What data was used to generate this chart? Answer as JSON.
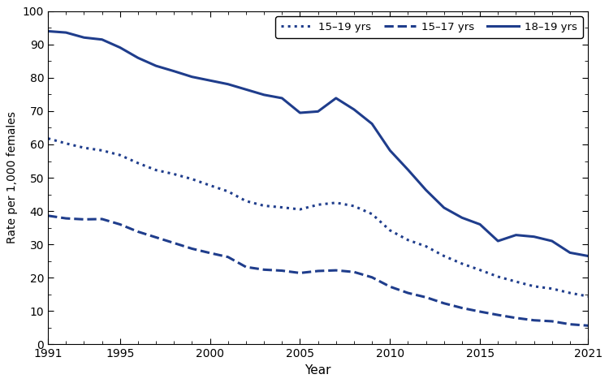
{
  "years": [
    1991,
    1992,
    1993,
    1994,
    1995,
    1996,
    1997,
    1998,
    1999,
    2000,
    2001,
    2002,
    2003,
    2004,
    2005,
    2006,
    2007,
    2008,
    2009,
    2010,
    2011,
    2012,
    2013,
    2014,
    2015,
    2016,
    2017,
    2018,
    2019,
    2020,
    2021
  ],
  "rate_15_19": [
    61.8,
    60.3,
    59.0,
    58.2,
    56.8,
    54.4,
    52.3,
    51.1,
    49.6,
    47.7,
    45.9,
    43.0,
    41.6,
    41.1,
    40.5,
    41.9,
    42.5,
    41.5,
    39.1,
    34.2,
    31.3,
    29.4,
    26.5,
    24.2,
    22.3,
    20.3,
    18.8,
    17.4,
    16.7,
    15.4,
    14.4
  ],
  "rate_15_17": [
    38.6,
    37.8,
    37.5,
    37.6,
    36.0,
    33.8,
    32.1,
    30.4,
    28.7,
    27.4,
    26.2,
    23.2,
    22.4,
    22.1,
    21.4,
    22.0,
    22.2,
    21.7,
    20.1,
    17.3,
    15.4,
    14.1,
    12.3,
    10.9,
    9.8,
    8.8,
    7.9,
    7.2,
    6.9,
    6.0,
    5.6
  ],
  "rate_18_19": [
    94.0,
    93.6,
    92.1,
    91.5,
    89.1,
    86.0,
    83.6,
    82.0,
    80.3,
    79.2,
    78.1,
    76.5,
    74.9,
    73.9,
    69.5,
    69.9,
    73.9,
    70.5,
    66.2,
    58.2,
    52.4,
    46.3,
    41.0,
    38.0,
    36.0,
    31.0,
    32.8,
    32.3,
    31.0,
    27.5,
    26.5
  ],
  "color": "#1f3d8c",
  "xlabel": "Year",
  "ylabel": "Rate per 1,000 females",
  "ylim": [
    0,
    100
  ],
  "yticks": [
    0,
    10,
    20,
    30,
    40,
    50,
    60,
    70,
    80,
    90,
    100
  ],
  "xticks_major": [
    1991,
    1995,
    2000,
    2005,
    2010,
    2015,
    2021
  ],
  "legend_labels": [
    "15–19 yrs",
    "15–17 yrs",
    "18–19 yrs"
  ]
}
